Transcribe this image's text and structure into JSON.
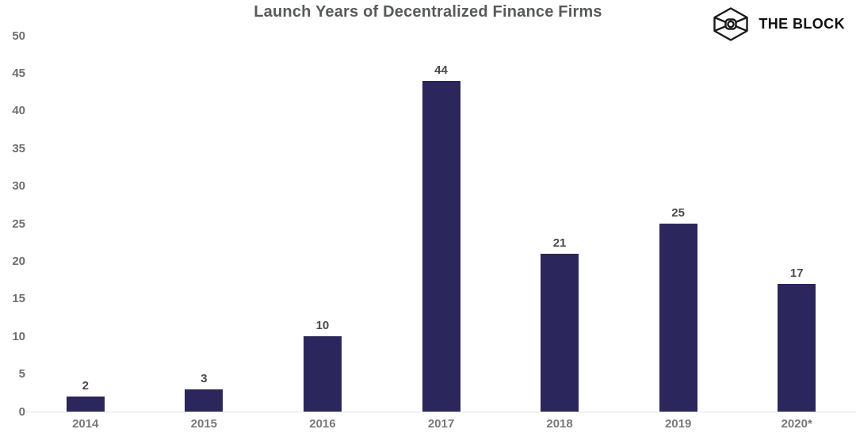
{
  "title": "Launch Years of Decentralized Finance Firms",
  "logo": {
    "icon": "block-cube-icon",
    "text": "THE BLOCK"
  },
  "chart_data": {
    "type": "bar",
    "title": "Launch Years of Decentralized Finance Firms",
    "categories": [
      "2014",
      "2015",
      "2016",
      "2017",
      "2018",
      "2019",
      "2020*"
    ],
    "values": [
      2,
      3,
      10,
      44,
      21,
      25,
      17
    ],
    "xlabel": "",
    "ylabel": "",
    "ylim": [
      0,
      50
    ],
    "yticks": [
      0,
      5,
      10,
      15,
      20,
      25,
      30,
      35,
      40,
      45,
      50
    ],
    "grid": false,
    "legend": "none",
    "data_labels": true,
    "bar_color": "#2b265c"
  },
  "colors": {
    "bar": "#2b265c",
    "title_text": "#58595b",
    "ytick_text": "#6d6e71",
    "xtick_text": "#77787b",
    "value_label_text": "#4b4b4d",
    "baseline": "#e2e2e2",
    "logo_ink": "#1a1a1a",
    "background": "#ffffff"
  }
}
